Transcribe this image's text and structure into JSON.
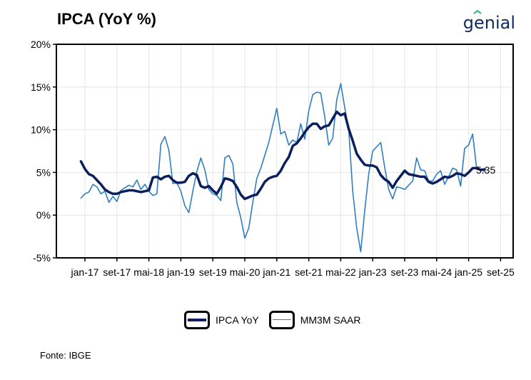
{
  "header": {
    "title": "IPCA (YoY %)",
    "logo": "genial"
  },
  "footer": {
    "source": "Fonte: IBGE"
  },
  "colors": {
    "ipca": "#0a1f5c",
    "mm3m": "#2f7ec1",
    "logo": "#0d2b5e",
    "grid": "#e6e6e6"
  },
  "chart_data": {
    "type": "line",
    "title": "IPCA (YoY %)",
    "ylim": [
      -5,
      20
    ],
    "yticks": [
      -5,
      0,
      5,
      10,
      15,
      20
    ],
    "ytick_labels": [
      "-5%",
      "0%",
      "5%",
      "10%",
      "15%",
      "20%"
    ],
    "xtick_labels": [
      "jan-17",
      "set-17",
      "mai-18",
      "jan-19",
      "set-19",
      "mai-20",
      "jan-21",
      "set-21",
      "mai-22",
      "jan-23",
      "set-23",
      "mai-24",
      "jan-25",
      "set-25"
    ],
    "end_label": "5.35",
    "legend_position": "bottom",
    "grid": true,
    "series": [
      {
        "name": "IPCA YoY",
        "start": "2016-12",
        "values": [
          6.3,
          5.4,
          4.8,
          4.6,
          4.1,
          3.6,
          3.0,
          2.7,
          2.5,
          2.5,
          2.7,
          2.8,
          2.9,
          2.9,
          2.8,
          2.7,
          2.8,
          2.9,
          4.4,
          4.5,
          4.2,
          4.5,
          4.6,
          4.1,
          3.8,
          3.8,
          3.9,
          4.6,
          4.9,
          4.7,
          3.4,
          3.2,
          3.4,
          2.9,
          2.5,
          3.3,
          4.3,
          4.2,
          4.0,
          3.3,
          2.4,
          1.9,
          2.1,
          2.3,
          2.4,
          3.1,
          3.9,
          4.3,
          4.5,
          4.6,
          5.2,
          6.1,
          6.8,
          8.1,
          8.4,
          9.0,
          9.7,
          10.3,
          10.7,
          10.7,
          10.1,
          10.4,
          10.5,
          11.3,
          12.1,
          11.7,
          11.9,
          10.1,
          8.7,
          7.2,
          6.5,
          5.9,
          5.8,
          5.8,
          5.6,
          4.7,
          4.2,
          3.9,
          3.2,
          4.0,
          4.6,
          5.2,
          4.8,
          4.7,
          4.6,
          4.5,
          4.5,
          3.9,
          3.7,
          3.9,
          4.2,
          4.5,
          4.4,
          4.6,
          4.9,
          4.8,
          4.6,
          5.0,
          5.5,
          5.5,
          5.3,
          5.35
        ]
      },
      {
        "name": "MM3M SAAR",
        "start": "2016-12",
        "values": [
          2.0,
          2.5,
          2.7,
          3.6,
          3.3,
          2.5,
          2.8,
          1.5,
          2.2,
          1.6,
          2.9,
          3.2,
          3.5,
          3.3,
          4.1,
          3.0,
          3.6,
          2.8,
          2.3,
          2.5,
          8.3,
          9.2,
          7.6,
          3.7,
          3.8,
          2.8,
          1.1,
          0.3,
          2.8,
          5.1,
          6.7,
          5.3,
          3.0,
          2.5,
          2.3,
          1.7,
          6.7,
          7.0,
          6.0,
          1.5,
          -0.3,
          -2.7,
          -1.5,
          1.5,
          4.3,
          5.5,
          7.0,
          8.5,
          10.5,
          12.5,
          9.5,
          9.8,
          8.2,
          8.8,
          8.5,
          10.7,
          8.9,
          12.2,
          14.1,
          14.4,
          14.3,
          11.5,
          8.2,
          9.0,
          13.5,
          15.4,
          12.6,
          10.0,
          2.8,
          -1.5,
          -4.3,
          0.5,
          4.8,
          7.5,
          8.0,
          8.5,
          5.6,
          3.0,
          1.9,
          3.3,
          3.2,
          3.0,
          3.5,
          4.0,
          6.7,
          5.3,
          5.2,
          4.0,
          4.0,
          4.8,
          5.2,
          3.6,
          4.5,
          5.5,
          5.3,
          3.4,
          7.8,
          8.2,
          9.5,
          5.5,
          5.4,
          5.1
        ]
      }
    ]
  },
  "legend": {
    "items": [
      {
        "label": "IPCA YoY"
      },
      {
        "label": "MM3M SAAR"
      }
    ]
  }
}
